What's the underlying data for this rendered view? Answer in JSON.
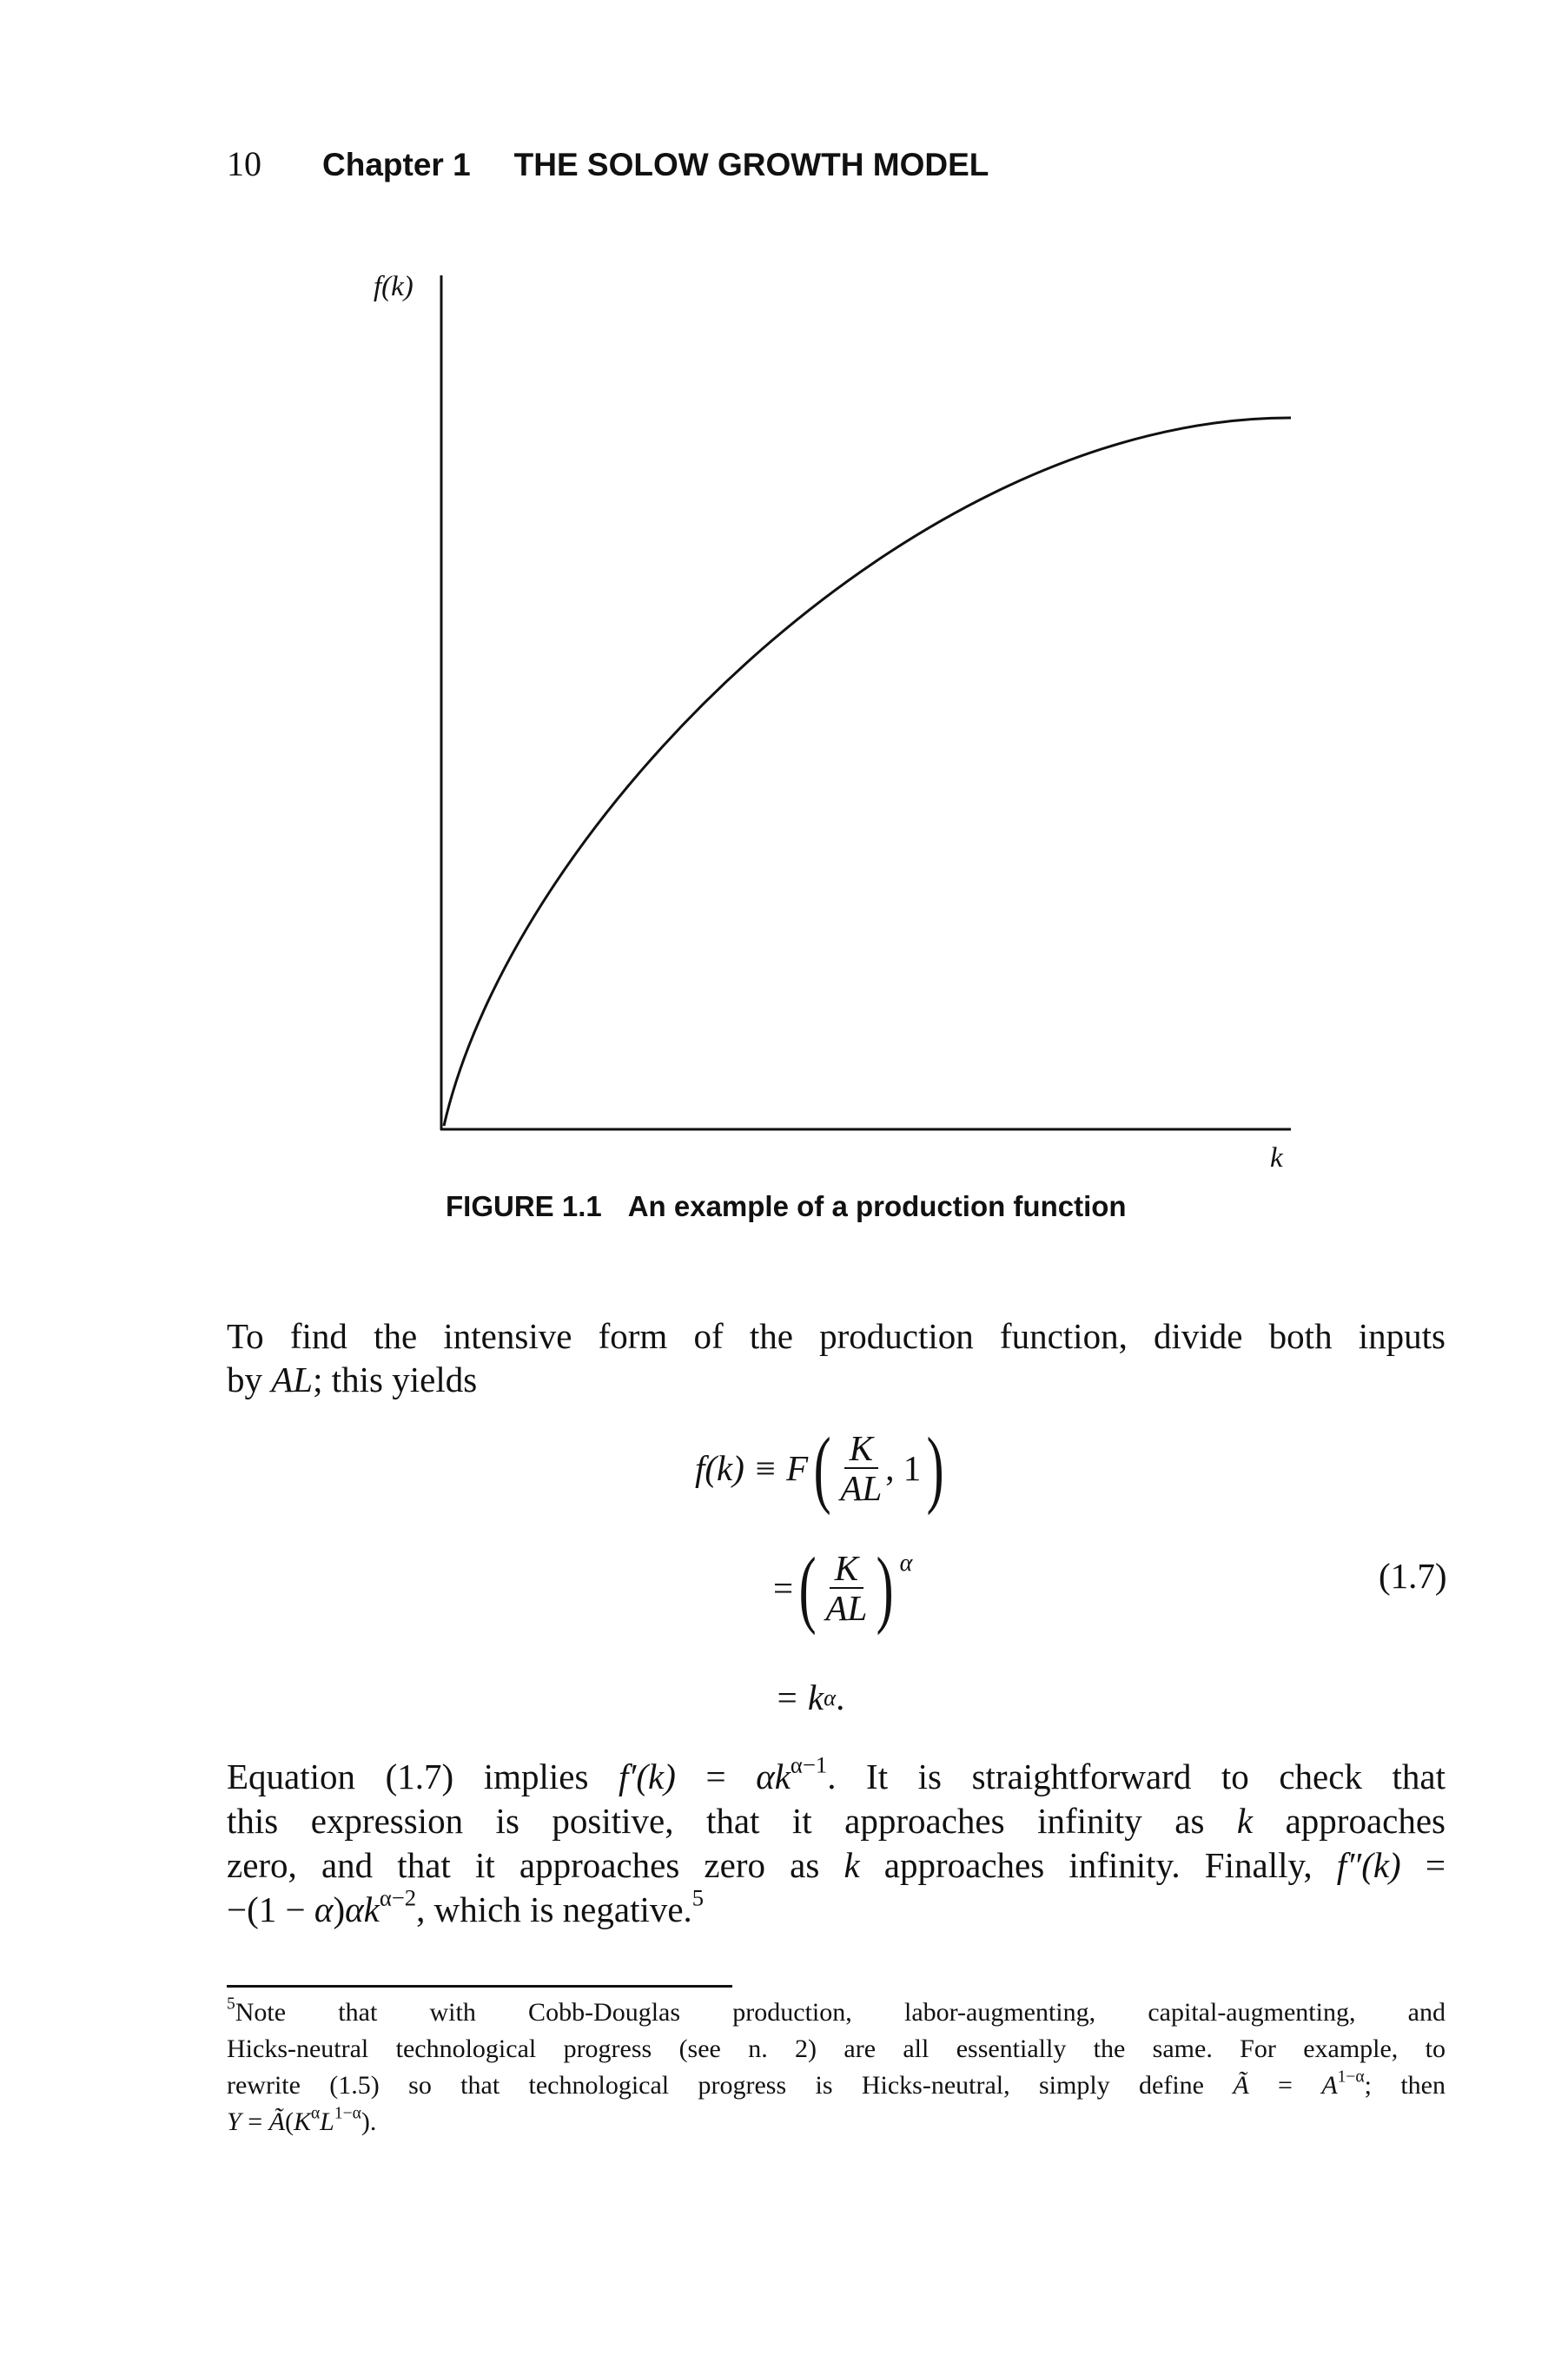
{
  "header": {
    "page_number": "10",
    "chapter": "Chapter 1",
    "title": "THE SOLOW GROWTH MODEL"
  },
  "figure": {
    "y_axis_label": "f(k)",
    "x_axis_label": "k",
    "caption_label": "FIGURE 1.1",
    "caption_text": "An example of a production function"
  },
  "body": {
    "p1": [
      [
        {
          "t": "To find the intensive form of the production function, divide both inputs"
        }
      ],
      [
        {
          "t": "by "
        },
        {
          "t": "AL",
          "i": true
        },
        {
          "t": "; this yields"
        }
      ]
    ],
    "equation": {
      "line1_lhs": "f(k) ≡ F",
      "frac_num": "K",
      "frac_den": "AL",
      "line1_tail": ", 1",
      "eq_sign": "=",
      "alpha": "α",
      "line3": "= k",
      "line3_end": ".",
      "number": "(1.7)"
    },
    "p2": [
      [
        {
          "t": "Equation (1.7) implies "
        },
        {
          "t": "f′(k)",
          "i": true
        },
        {
          "t": " = "
        },
        {
          "t": "αk",
          "i": true
        },
        {
          "t": "α−1",
          "s": true
        },
        {
          "t": ". It is straightforward to check that"
        }
      ],
      [
        {
          "t": "this expression is positive, that it approaches infinity as "
        },
        {
          "t": "k",
          "i": true
        },
        {
          "t": " approaches"
        }
      ],
      [
        {
          "t": "zero, and that it approaches zero as "
        },
        {
          "t": "k",
          "i": true
        },
        {
          "t": " approaches infinity. Finally, "
        },
        {
          "t": "f″(k)",
          "i": true
        },
        {
          "t": " ="
        }
      ],
      [
        {
          "t": "−(1 − "
        },
        {
          "t": "α",
          "i": true
        },
        {
          "t": ")"
        },
        {
          "t": "αk",
          "i": true
        },
        {
          "t": "α−2",
          "s": true
        },
        {
          "t": ", which is negative."
        },
        {
          "t": "5",
          "s": true
        }
      ]
    ]
  },
  "footnote": {
    "lines": [
      [
        {
          "t": "5",
          "s": true
        },
        {
          "t": "Note that with Cobb-Douglas production, labor-augmenting, capital-augmenting, and"
        }
      ],
      [
        {
          "t": "Hicks-neutral technological progress (see n. 2) are all essentially the same. For example, to"
        }
      ],
      [
        {
          "t": "rewrite (1.5) so that technological progress is Hicks-neutral, simply define "
        },
        {
          "t": "Ã",
          "i": true
        },
        {
          "t": " = "
        },
        {
          "t": "A",
          "i": true
        },
        {
          "t": "1−α",
          "s": true
        },
        {
          "t": "; then"
        }
      ],
      [
        {
          "t": "Y",
          "i": true
        },
        {
          "t": " = "
        },
        {
          "t": "Ã",
          "i": true
        },
        {
          "t": "("
        },
        {
          "t": "K",
          "i": true
        },
        {
          "t": "α",
          "s": true
        },
        {
          "t": "L",
          "i": true
        },
        {
          "t": "1−α",
          "s": true
        },
        {
          "t": ")."
        }
      ]
    ]
  }
}
